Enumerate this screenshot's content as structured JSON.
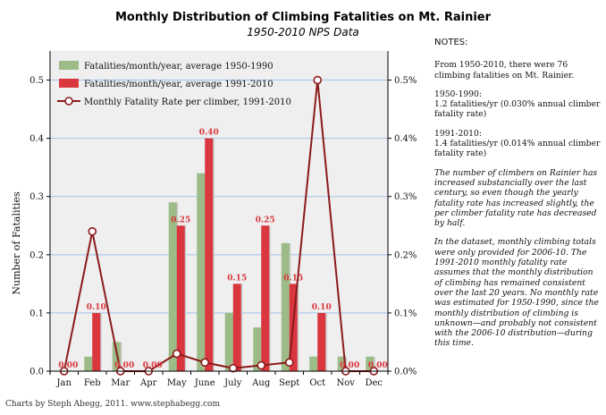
{
  "chart_data": {
    "type": "bar",
    "title": "Monthly Distribution of Climbing Fatalities on Mt. Rainier",
    "subtitle": "1950-2010 NPS Data",
    "ylabel": "Number of Fatalities",
    "ylim": [
      0,
      0.55
    ],
    "y_ticks": [
      0.0,
      0.1,
      0.2,
      0.3,
      0.4,
      0.5
    ],
    "y_tick_labels": [
      "0.0",
      "0.1",
      "0.2",
      "0.3",
      "0.4",
      "0.5"
    ],
    "y2lim": [
      0,
      0.55
    ],
    "y2_ticks": [
      0.0,
      0.1,
      0.2,
      0.3,
      0.4,
      0.5
    ],
    "y2_tick_labels": [
      "0.0%",
      "0.1%",
      "0.2%",
      "0.3%",
      "0.4%",
      "0.5%"
    ],
    "grid": true,
    "legend_position": "top-left",
    "categories": [
      "Jan",
      "Feb",
      "Mar",
      "Apr",
      "May",
      "June",
      "July",
      "Aug",
      "Sept",
      "Oct",
      "Nov",
      "Dec"
    ],
    "series": [
      {
        "name": "Fatalities/month/year, average 1950-1990",
        "type": "bar",
        "color": "#9dbb86",
        "values": [
          0.0,
          0.025,
          0.05,
          0.0,
          0.29,
          0.34,
          0.1,
          0.075,
          0.22,
          0.025,
          0.025,
          0.025
        ]
      },
      {
        "name": "Fatalities/month/year, average 1991-2010",
        "type": "bar",
        "color": "#d9373d",
        "values": [
          0.0,
          0.1,
          0.0,
          0.0,
          0.25,
          0.4,
          0.15,
          0.25,
          0.15,
          0.1,
          0.0,
          0.0
        ],
        "data_labels": [
          "0.00",
          "0.10",
          "0.00",
          "0.00",
          "0.25",
          "0.40",
          "0.15",
          "0.25",
          "0.15",
          "0.10",
          "0.00",
          "0.00"
        ]
      },
      {
        "name": "Monthly Fatality Rate per climber, 1991-2010",
        "type": "line",
        "color": "#8b1a1a",
        "axis": "right",
        "values": [
          0.0,
          0.24,
          0.0,
          0.0,
          0.03,
          0.015,
          0.005,
          0.01,
          0.015,
          0.5,
          0.0,
          0.0
        ]
      }
    ]
  },
  "notes": {
    "heading": "NOTES:",
    "p1": "From 1950-2010, there were 76 climbing fatalities on Mt. Rainier.",
    "p2_title": "1950-1990:",
    "p2_body": "1.2 fatalities/yr (0.030% annual climber fatality rate)",
    "p3_title": "1991-2010:",
    "p3_body": "1.4 fatalities/yr (0.014% annual climber fatality rate)",
    "p4": "The number of climbers on Rainier has increased substancially over the last century, so even though the yearly fatality rate has increased slightly, the per climber fatality rate has decreased by half.",
    "p5": "In the dataset, monthly climbing totals were only provided for 2006-10. The 1991-2010 monthly fatality rate assumes that the monthly distribution of climbing has remained consistent over the last 20 years. No monthly rate was estimated for 1950-1990, since the monthly distribution of climbing is unknown—and probably not consistent with the 2006-10 distribution—during this time."
  },
  "credit": "Charts by Steph Abegg, 2011. www.stephabegg.com"
}
